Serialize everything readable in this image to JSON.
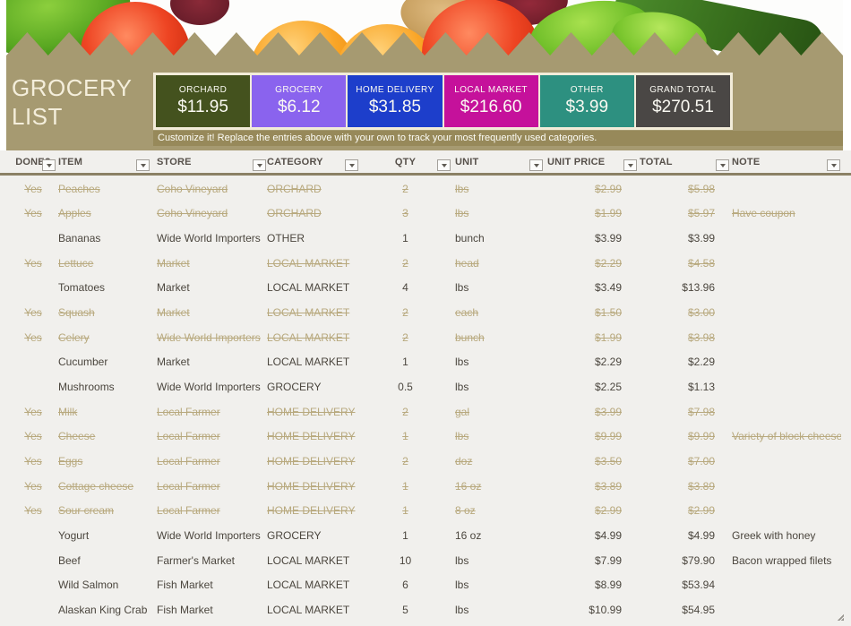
{
  "title": {
    "line1": "GROCERY",
    "line2": "LIST"
  },
  "summary": {
    "cards": [
      {
        "label": "ORCHARD",
        "value": "$11.95",
        "color": "#44521e"
      },
      {
        "label": "GROCERY",
        "value": "$6.12",
        "color": "#8a63ee"
      },
      {
        "label": "HOME DELIVERY",
        "value": "$31.85",
        "color": "#1d3ecb"
      },
      {
        "label": "LOCAL MARKET",
        "value": "$216.60",
        "color": "#c5119b"
      },
      {
        "label": "OTHER",
        "value": "$3.99",
        "color": "#2d9080"
      },
      {
        "label": "GRAND TOTAL",
        "value": "$270.51",
        "color": "#4a4745"
      }
    ],
    "customize_note": "Customize it! Replace the entries above with your own to track your most frequently used categories."
  },
  "table": {
    "columns": [
      "DONE?",
      "ITEM",
      "STORE",
      "CATEGORY",
      "QTY",
      "UNIT",
      "UNIT PRICE",
      "TOTAL",
      "NOTE"
    ],
    "rows": [
      {
        "done": "Yes",
        "item": "Peaches",
        "store": "Coho Vineyard",
        "category": "ORCHARD",
        "qty": "2",
        "unit": "lbs",
        "unit_price": "$2.99",
        "total": "$5.98",
        "note": "",
        "struck": true
      },
      {
        "done": "Yes",
        "item": "Apples",
        "store": "Coho Vineyard",
        "category": "ORCHARD",
        "qty": "3",
        "unit": "lbs",
        "unit_price": "$1.99",
        "total": "$5.97",
        "note": "Have coupon",
        "struck": true
      },
      {
        "done": "",
        "item": "Bananas",
        "store": "Wide World Importers",
        "category": "OTHER",
        "qty": "1",
        "unit": "bunch",
        "unit_price": "$3.99",
        "total": "$3.99",
        "note": "",
        "struck": false
      },
      {
        "done": "Yes",
        "item": "Lettuce",
        "store": "Market",
        "category": "LOCAL MARKET",
        "qty": "2",
        "unit": "head",
        "unit_price": "$2.29",
        "total": "$4.58",
        "note": "",
        "struck": true
      },
      {
        "done": "",
        "item": "Tomatoes",
        "store": "Market",
        "category": "LOCAL MARKET",
        "qty": "4",
        "unit": "lbs",
        "unit_price": "$3.49",
        "total": "$13.96",
        "note": "",
        "struck": false
      },
      {
        "done": "Yes",
        "item": "Squash",
        "store": "Market",
        "category": "LOCAL MARKET",
        "qty": "2",
        "unit": "each",
        "unit_price": "$1.50",
        "total": "$3.00",
        "note": "",
        "struck": true
      },
      {
        "done": "Yes",
        "item": "Celery",
        "store": "Wide World Importers",
        "category": "LOCAL MARKET",
        "qty": "2",
        "unit": "bunch",
        "unit_price": "$1.99",
        "total": "$3.98",
        "note": "",
        "struck": true
      },
      {
        "done": "",
        "item": "Cucumber",
        "store": "Market",
        "category": "LOCAL MARKET",
        "qty": "1",
        "unit": "lbs",
        "unit_price": "$2.29",
        "total": "$2.29",
        "note": "",
        "struck": false
      },
      {
        "done": "",
        "item": "Mushrooms",
        "store": "Wide World Importers",
        "category": "GROCERY",
        "qty": "0.5",
        "unit": "lbs",
        "unit_price": "$2.25",
        "total": "$1.13",
        "note": "",
        "struck": false
      },
      {
        "done": "Yes",
        "item": "Milk",
        "store": "Local Farmer",
        "category": "HOME DELIVERY",
        "qty": "2",
        "unit": "gal",
        "unit_price": "$3.99",
        "total": "$7.98",
        "note": "",
        "struck": true
      },
      {
        "done": "Yes",
        "item": "Cheese",
        "store": "Local Farmer",
        "category": "HOME DELIVERY",
        "qty": "1",
        "unit": "lbs",
        "unit_price": "$9.99",
        "total": "$9.99",
        "note": "Variety of block cheeses",
        "struck": true
      },
      {
        "done": "Yes",
        "item": "Eggs",
        "store": "Local Farmer",
        "category": "HOME DELIVERY",
        "qty": "2",
        "unit": "doz",
        "unit_price": "$3.50",
        "total": "$7.00",
        "note": "",
        "struck": true
      },
      {
        "done": "Yes",
        "item": "Cottage cheese",
        "store": "Local Farmer",
        "category": "HOME DELIVERY",
        "qty": "1",
        "unit": "16 oz",
        "unit_price": "$3.89",
        "total": "$3.89",
        "note": "",
        "struck": true
      },
      {
        "done": "Yes",
        "item": "Sour cream",
        "store": "Local Farmer",
        "category": "HOME DELIVERY",
        "qty": "1",
        "unit": "8 oz",
        "unit_price": "$2.99",
        "total": "$2.99",
        "note": "",
        "struck": true
      },
      {
        "done": "",
        "item": "Yogurt",
        "store": "Wide World Importers",
        "category": "GROCERY",
        "qty": "1",
        "unit": "16 oz",
        "unit_price": "$4.99",
        "total": "$4.99",
        "note": "Greek with honey",
        "struck": false
      },
      {
        "done": "",
        "item": "Beef",
        "store": "Farmer's Market",
        "category": "LOCAL MARKET",
        "qty": "10",
        "unit": "lbs",
        "unit_price": "$7.99",
        "total": "$79.90",
        "note": "Bacon wrapped filets",
        "struck": false
      },
      {
        "done": "",
        "item": "Wild Salmon",
        "store": "Fish Market",
        "category": "LOCAL MARKET",
        "qty": "6",
        "unit": "lbs",
        "unit_price": "$8.99",
        "total": "$53.94",
        "note": "",
        "struck": false
      },
      {
        "done": "",
        "item": "Alaskan King Crab Legs",
        "store": "Fish Market",
        "category": "LOCAL MARKET",
        "qty": "5",
        "unit": "lbs",
        "unit_price": "$10.99",
        "total": "$54.95",
        "note": "",
        "struck": false
      }
    ]
  },
  "colors": {
    "band_khaki": "#a69a71",
    "customize_strip": "#97895a",
    "table_background": "#f1f0ed",
    "struck_text": "#b8a97e",
    "normal_text": "#4b463e",
    "header_text": "#56504a",
    "card_border_cream": "#f2ecd9"
  }
}
